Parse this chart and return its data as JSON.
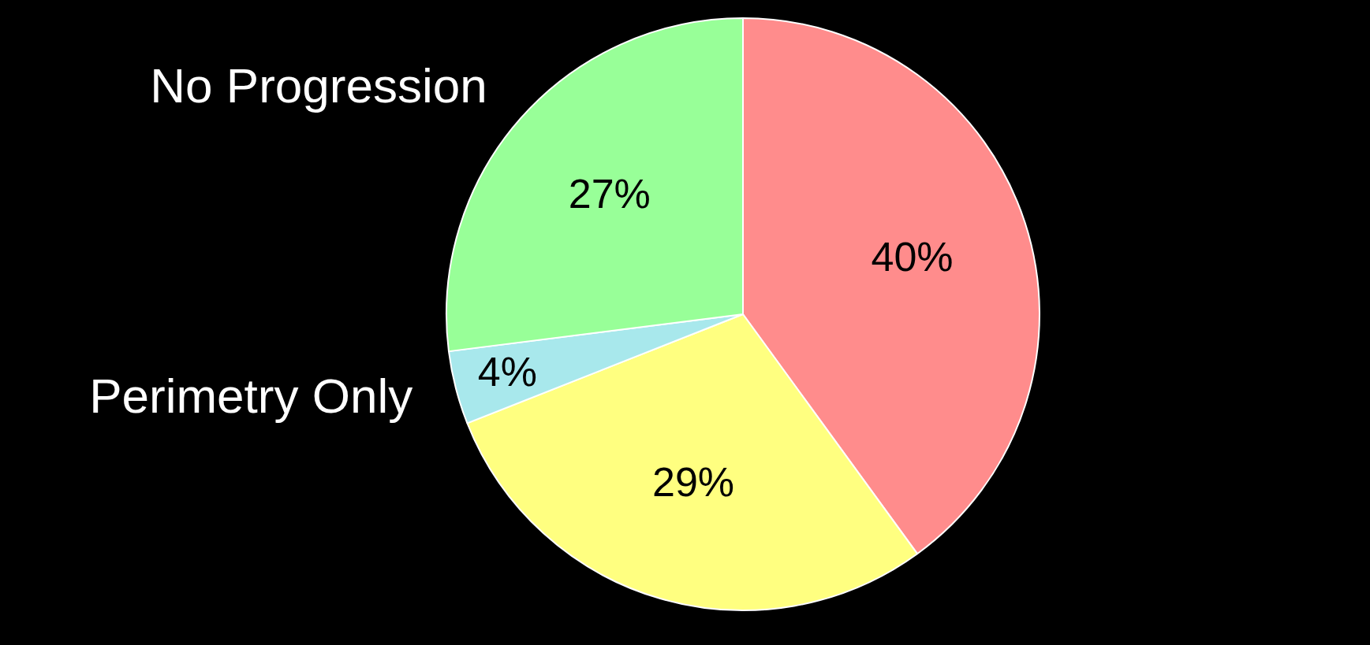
{
  "chart_data": {
    "type": "pie",
    "categories": [
      null,
      null,
      "Perimetry Only",
      "No Progression"
    ],
    "values": [
      40,
      29,
      4,
      27
    ],
    "colors": [
      "#ff8c8c",
      "#ffff80",
      "#a8e8ec",
      "#98ff98"
    ],
    "value_labels": [
      "40%",
      "29%",
      "4%",
      "27%"
    ]
  }
}
